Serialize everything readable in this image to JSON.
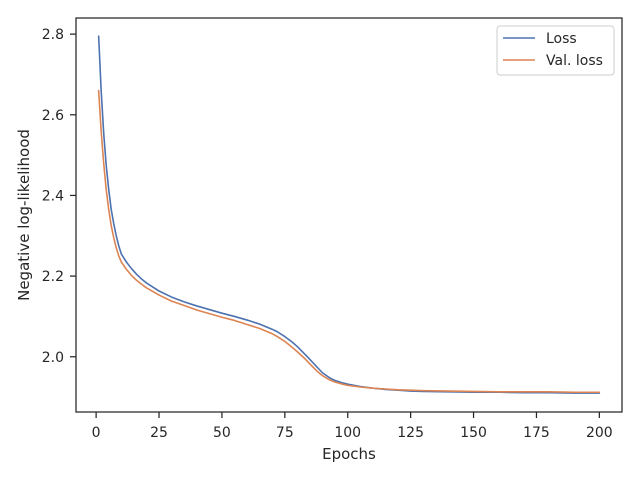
{
  "chart_data": {
    "type": "line",
    "title": "",
    "xlabel": "Epochs",
    "ylabel": "Negative log-likelihood",
    "xlim": [
      -8,
      209
    ],
    "ylim": [
      1.863,
      2.84
    ],
    "xticks": [
      0,
      25,
      50,
      75,
      100,
      125,
      150,
      175,
      200
    ],
    "yticks": [
      2.0,
      2.2,
      2.4,
      2.6,
      2.8
    ],
    "ytick_labels": [
      "2.0",
      "2.2",
      "2.4",
      "2.6",
      "2.8"
    ],
    "grid": false,
    "legend_position": "top-right",
    "series": [
      {
        "name": "Loss",
        "color": "#4c72b0",
        "x": [
          1,
          2,
          3,
          4,
          5,
          6,
          7,
          8,
          9,
          10,
          12,
          14,
          16,
          18,
          20,
          25,
          30,
          35,
          40,
          45,
          50,
          55,
          60,
          65,
          70,
          72,
          75,
          78,
          80,
          83,
          85,
          88,
          90,
          93,
          95,
          98,
          100,
          105,
          110,
          115,
          120,
          125,
          130,
          140,
          150,
          160,
          170,
          180,
          190,
          200
        ],
        "y": [
          2.795,
          2.66,
          2.555,
          2.475,
          2.415,
          2.365,
          2.33,
          2.3,
          2.275,
          2.255,
          2.235,
          2.219,
          2.205,
          2.193,
          2.183,
          2.163,
          2.148,
          2.136,
          2.126,
          2.117,
          2.108,
          2.1,
          2.091,
          2.081,
          2.068,
          2.062,
          2.05,
          2.036,
          2.025,
          2.006,
          1.993,
          1.973,
          1.96,
          1.947,
          1.941,
          1.935,
          1.932,
          1.926,
          1.922,
          1.919,
          1.917,
          1.915,
          1.914,
          1.913,
          1.912,
          1.912,
          1.911,
          1.911,
          1.91,
          1.91
        ]
      },
      {
        "name": "Val. loss",
        "color": "#dd8452",
        "x": [
          1,
          2,
          3,
          4,
          5,
          6,
          7,
          8,
          9,
          10,
          12,
          14,
          16,
          18,
          20,
          25,
          30,
          35,
          40,
          45,
          50,
          55,
          60,
          65,
          70,
          72,
          75,
          78,
          80,
          83,
          85,
          88,
          90,
          93,
          95,
          98,
          100,
          105,
          110,
          115,
          120,
          125,
          130,
          140,
          150,
          160,
          170,
          180,
          190,
          200
        ],
        "y": [
          2.66,
          2.56,
          2.48,
          2.415,
          2.365,
          2.325,
          2.295,
          2.27,
          2.25,
          2.235,
          2.217,
          2.202,
          2.19,
          2.18,
          2.171,
          2.153,
          2.138,
          2.127,
          2.116,
          2.107,
          2.098,
          2.09,
          2.08,
          2.07,
          2.057,
          2.05,
          2.038,
          2.023,
          2.012,
          1.995,
          1.982,
          1.963,
          1.953,
          1.942,
          1.937,
          1.932,
          1.929,
          1.925,
          1.922,
          1.92,
          1.918,
          1.917,
          1.916,
          1.915,
          1.914,
          1.913,
          1.913,
          1.913,
          1.912,
          1.912
        ]
      }
    ]
  }
}
